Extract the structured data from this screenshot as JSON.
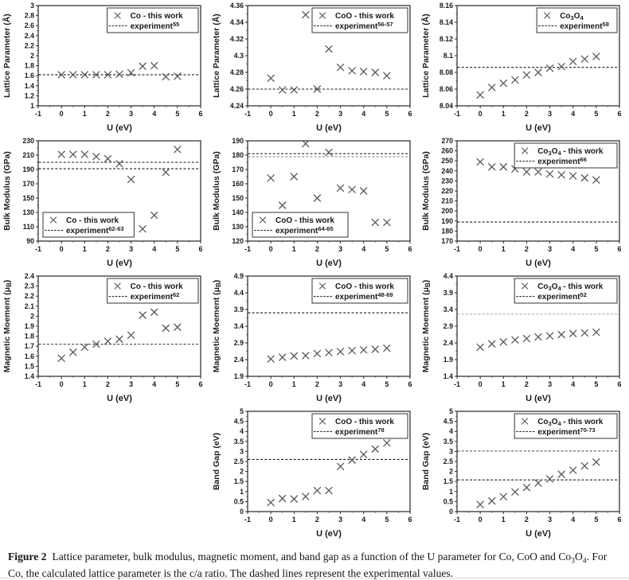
{
  "caption": {
    "label": "Figure 2",
    "text": "Lattice parameter, bulk modulus, magnetic moment, and band gap as a function of the U parameter for Co, CoO and Co_{3}O_{4}. For Co, the calculated lattice parameter is the c/a ratio. The dashed lines represent the experimental values."
  },
  "colors": {
    "marker": "#595959",
    "axis": "#262626",
    "tick_minor": "#777777",
    "experiment_dark": "#1a1a1a",
    "experiment_light": "#a6a6a6"
  },
  "chart_data": [
    {
      "id": "co-lattice-parameter",
      "type": "scatter",
      "marker": "x",
      "row": 1,
      "col": 1,
      "ylabel": "Lattice Parameter (Å)",
      "xlabel": "U (eV)",
      "xlim": [
        -1,
        6
      ],
      "ylim": [
        1,
        3
      ],
      "xticks": [
        -1,
        0,
        1,
        2,
        3,
        4,
        5,
        6
      ],
      "xtick_labels": [
        "-1",
        "0",
        "1",
        "2",
        "3",
        "4",
        "5",
        "6"
      ],
      "yticks": [
        1,
        1.2,
        1.4,
        1.6,
        1.8,
        2,
        2.2,
        2.4,
        2.6,
        2.8,
        3
      ],
      "ytick_labels": [
        "1",
        "1.2",
        "1.4",
        "1.6",
        "1.8",
        "2",
        "2.2",
        "2.4",
        "2.6",
        "2.8",
        "3"
      ],
      "x": [
        0,
        0.5,
        1,
        1.5,
        2,
        2.5,
        3,
        3.5,
        4,
        4.5,
        5
      ],
      "y": [
        1.62,
        1.62,
        1.62,
        1.62,
        1.62,
        1.63,
        1.66,
        1.79,
        1.8,
        1.58,
        1.59
      ],
      "experiment_lines": [
        {
          "y": 1.62,
          "color": "#1a1a1a"
        }
      ],
      "legend": {
        "position": "top-right",
        "entries": [
          {
            "symbol": "x-marker",
            "label": "Co - this work"
          },
          {
            "symbol": "dashed-line",
            "label": "experiment^{55}"
          }
        ]
      }
    },
    {
      "id": "coo-lattice-parameter",
      "type": "scatter",
      "marker": "x",
      "row": 1,
      "col": 2,
      "ylabel": "Lattice Parameter (Å)",
      "xlabel": "U (eV)",
      "xlim": [
        -1,
        6
      ],
      "ylim": [
        4.24,
        4.36
      ],
      "xticks": [
        -1,
        0,
        1,
        2,
        3,
        4,
        5,
        6
      ],
      "xtick_labels": [
        "-1",
        "0",
        "1",
        "2",
        "3",
        "4",
        "5",
        "6"
      ],
      "yticks": [
        4.24,
        4.26,
        4.28,
        4.3,
        4.32,
        4.34,
        4.36
      ],
      "ytick_labels": [
        "4.24",
        "4.26",
        "4.28",
        "4.3",
        "4.32",
        "4.34",
        "4.36"
      ],
      "x": [
        0,
        0.5,
        1,
        1.5,
        2,
        2.5,
        3,
        3.5,
        4,
        4.5,
        5
      ],
      "y": [
        4.273,
        4.259,
        4.259,
        4.349,
        4.26,
        4.308,
        4.286,
        4.282,
        4.281,
        4.28,
        4.276
      ],
      "experiment_lines": [
        {
          "y": 4.26,
          "color": "#1a1a1a"
        }
      ],
      "legend": {
        "position": "top-right",
        "entries": [
          {
            "symbol": "x-marker",
            "label": "CoO - this work"
          },
          {
            "symbol": "dashed-line",
            "label": "experiment^{56-57}"
          }
        ]
      }
    },
    {
      "id": "co3o4-lattice-parameter",
      "type": "scatter",
      "marker": "x",
      "row": 1,
      "col": 3,
      "ylabel": "Lattice Parameter (Å)",
      "xlabel": "U (eV)",
      "xlim": [
        -1,
        6
      ],
      "ylim": [
        8.04,
        8.16
      ],
      "xticks": [
        -1,
        0,
        1,
        2,
        3,
        4,
        5,
        6
      ],
      "xtick_labels": [
        "-1",
        "0",
        "1",
        "2",
        "3",
        "4",
        "5",
        "6"
      ],
      "yticks": [
        8.04,
        8.06,
        8.08,
        8.1,
        8.12,
        8.14,
        8.16
      ],
      "ytick_labels": [
        "8.04",
        "8.06",
        "8.08",
        "8.1",
        "8.12",
        "8.14",
        "8.16"
      ],
      "x": [
        0,
        0.5,
        1,
        1.5,
        2,
        2.5,
        3,
        3.5,
        4,
        4.5,
        5
      ],
      "y": [
        8.053,
        8.062,
        8.067,
        8.071,
        8.077,
        8.08,
        8.085,
        8.087,
        8.093,
        8.096,
        8.099
      ],
      "experiment_lines": [
        {
          "y": 8.086,
          "color": "#1a1a1a"
        }
      ],
      "legend": {
        "position": "top-right",
        "entries": [
          {
            "symbol": "x-marker",
            "label": "Co_{3}O_{4}"
          },
          {
            "symbol": "dashed-line",
            "label": "experiment^{58}"
          }
        ]
      }
    },
    {
      "id": "co-bulk-modulus",
      "type": "scatter",
      "marker": "x",
      "row": 2,
      "col": 1,
      "ylabel": "Bulk Modulus (GPa)",
      "xlabel": "U (eV)",
      "xlim": [
        -1,
        6
      ],
      "ylim": [
        90,
        230
      ],
      "xticks": [
        -1,
        0,
        1,
        2,
        3,
        4,
        5,
        6
      ],
      "xtick_labels": [
        "-1",
        "0",
        "1",
        "2",
        "3",
        "4",
        "5",
        "6"
      ],
      "yticks": [
        90,
        110,
        130,
        150,
        170,
        190,
        210,
        230
      ],
      "ytick_labels": [
        "90",
        "110",
        "130",
        "150",
        "170",
        "190",
        "210",
        "230"
      ],
      "x": [
        0,
        0.5,
        1,
        1.5,
        2,
        2.5,
        3,
        3.5,
        4,
        4.5,
        5
      ],
      "y": [
        211,
        211,
        211,
        208,
        205,
        198,
        176,
        107,
        126,
        186,
        218
      ],
      "experiment_lines": [
        {
          "y": 200,
          "color": "#1a1a1a"
        },
        {
          "y": 191,
          "color": "#1a1a1a"
        }
      ],
      "legend": {
        "position": "bottom-left",
        "entries": [
          {
            "symbol": "x-marker",
            "label": "Co - this work"
          },
          {
            "symbol": "dashed-line",
            "label": "experiment^{62-63}"
          }
        ]
      }
    },
    {
      "id": "coo-bulk-modulus",
      "type": "scatter",
      "marker": "x",
      "row": 2,
      "col": 2,
      "ylabel": "Bulk Modulus (GPa)",
      "xlabel": "U (eV)",
      "xlim": [
        -1,
        6
      ],
      "ylim": [
        120,
        190
      ],
      "xticks": [
        -1,
        0,
        1,
        2,
        3,
        4,
        5,
        6
      ],
      "xtick_labels": [
        "-1",
        "0",
        "1",
        "2",
        "3",
        "4",
        "5",
        "6"
      ],
      "yticks": [
        120,
        130,
        140,
        150,
        160,
        170,
        180,
        190
      ],
      "ytick_labels": [
        "120",
        "130",
        "140",
        "150",
        "160",
        "170",
        "180",
        "190"
      ],
      "x": [
        0,
        0.5,
        1,
        1.5,
        2,
        2.5,
        3,
        3.5,
        4,
        4.5,
        5
      ],
      "y": [
        164,
        145,
        165,
        188,
        150,
        182,
        157,
        156,
        155,
        133,
        133
      ],
      "experiment_lines": [
        {
          "y": 181,
          "color": "#262626"
        },
        {
          "y": 179,
          "color": "#8c8c8c"
        }
      ],
      "legend": {
        "position": "bottom-left",
        "entries": [
          {
            "symbol": "x-marker",
            "label": "CoO - this work"
          },
          {
            "symbol": "dashed-line",
            "label": "experiment^{64-65}"
          }
        ]
      }
    },
    {
      "id": "co3o4-bulk-modulus",
      "type": "scatter",
      "marker": "x",
      "row": 2,
      "col": 3,
      "ylabel": "Bulk Modulus (GPa)",
      "xlabel": "U (eV)",
      "xlim": [
        -1,
        6
      ],
      "ylim": [
        170,
        270
      ],
      "xticks": [
        -1,
        0,
        1,
        2,
        3,
        4,
        5,
        6
      ],
      "xtick_labels": [
        "-1",
        "0",
        "1",
        "2",
        "3",
        "4",
        "5",
        "6"
      ],
      "yticks": [
        170,
        180,
        190,
        200,
        210,
        220,
        230,
        240,
        250,
        260,
        270
      ],
      "ytick_labels": [
        "170",
        "180",
        "190",
        "200",
        "210",
        "220",
        "230",
        "240",
        "250",
        "260",
        "270"
      ],
      "x": [
        0,
        0.5,
        1,
        1.5,
        2,
        2.5,
        3,
        3.5,
        4,
        4.5,
        5
      ],
      "y": [
        249,
        244,
        244,
        242,
        239,
        239,
        237,
        236,
        235,
        233,
        231
      ],
      "experiment_lines": [
        {
          "y": 189,
          "color": "#1a1a1a"
        }
      ],
      "legend": {
        "position": "top-right",
        "entries": [
          {
            "symbol": "x-marker",
            "label": "Co_{3}O_{4} - this work"
          },
          {
            "symbol": "dashed-line",
            "label": "experiment^{66}"
          }
        ]
      }
    },
    {
      "id": "co-magnetic-moment",
      "type": "scatter",
      "marker": "x",
      "row": 3,
      "col": 1,
      "ylabel": "Magnetic Moement (μ_{B})",
      "xlabel": "U (eV)",
      "xlim": [
        -1,
        6
      ],
      "ylim": [
        1.4,
        2.4
      ],
      "xticks": [
        -1,
        0,
        1,
        2,
        3,
        4,
        5,
        6
      ],
      "xtick_labels": [
        "-1",
        "0",
        "1",
        "2",
        "3",
        "4",
        "5",
        "6"
      ],
      "yticks": [
        1.4,
        1.5,
        1.6,
        1.7,
        1.8,
        1.9,
        2,
        2.1,
        2.2,
        2.3,
        2.4
      ],
      "ytick_labels": [
        "1.4",
        "1.5",
        "1.6",
        "1.7",
        "1.8",
        "1.9",
        "2",
        "2.1",
        "2.2",
        "2.3",
        "2.4"
      ],
      "x": [
        0,
        0.5,
        1,
        1.5,
        2,
        2.5,
        3,
        3.5,
        4,
        4.5,
        5
      ],
      "y": [
        1.58,
        1.64,
        1.69,
        1.72,
        1.75,
        1.77,
        1.81,
        2.01,
        2.04,
        1.88,
        1.89
      ],
      "experiment_lines": [
        {
          "y": 1.72,
          "color": "#404040"
        }
      ],
      "legend": {
        "position": "top-right",
        "entries": [
          {
            "symbol": "x-marker",
            "label": "Co - this work"
          },
          {
            "symbol": "dashed-line",
            "label": "experiment^{62}"
          }
        ]
      }
    },
    {
      "id": "coo-magnetic-moment",
      "type": "scatter",
      "marker": "x",
      "row": 3,
      "col": 2,
      "ylabel": "Magnetic Moement (μ_{B})",
      "xlabel": "U (eV)",
      "xlim": [
        -1,
        6
      ],
      "ylim": [
        1.9,
        4.9
      ],
      "xticks": [
        -1,
        0,
        1,
        2,
        3,
        4,
        5,
        6
      ],
      "xtick_labels": [
        "-1",
        "0",
        "1",
        "2",
        "3",
        "4",
        "5",
        "6"
      ],
      "yticks": [
        1.9,
        2.4,
        2.9,
        3.4,
        3.9,
        4.4,
        4.9
      ],
      "ytick_labels": [
        "1.9",
        "2.4",
        "2.9",
        "3.4",
        "3.9",
        "4.4",
        "4.9"
      ],
      "x": [
        0,
        0.5,
        1,
        1.5,
        2,
        2.5,
        3,
        3.5,
        4,
        4.5,
        5
      ],
      "y": [
        2.42,
        2.47,
        2.51,
        2.52,
        2.58,
        2.61,
        2.64,
        2.67,
        2.69,
        2.71,
        2.74
      ],
      "experiment_lines": [
        {
          "y": 3.8,
          "color": "#1a1a1a"
        }
      ],
      "legend": {
        "position": "top-right",
        "entries": [
          {
            "symbol": "x-marker",
            "label": "CoO - this work"
          },
          {
            "symbol": "dashed-line",
            "label": "experiment^{48-69}"
          }
        ]
      }
    },
    {
      "id": "co3o4-magnetic-moment",
      "type": "scatter",
      "marker": "x",
      "row": 3,
      "col": 3,
      "ylabel": "Magnetic Moement (μ_{B})",
      "xlabel": "U (eV)",
      "xlim": [
        -1,
        6
      ],
      "ylim": [
        1.4,
        4.4
      ],
      "xticks": [
        -1,
        0,
        1,
        2,
        3,
        4,
        5,
        6
      ],
      "xtick_labels": [
        "-1",
        "0",
        "1",
        "2",
        "3",
        "4",
        "5",
        "6"
      ],
      "yticks": [
        1.4,
        1.9,
        2.4,
        2.9,
        3.4,
        3.9,
        4.4
      ],
      "ytick_labels": [
        "1.4",
        "1.9",
        "2.4",
        "2.9",
        "3.4",
        "3.9",
        "4.4"
      ],
      "x": [
        0,
        0.5,
        1,
        1.5,
        2,
        2.5,
        3,
        3.5,
        4,
        4.5,
        5
      ],
      "y": [
        2.27,
        2.37,
        2.43,
        2.49,
        2.53,
        2.58,
        2.61,
        2.65,
        2.68,
        2.7,
        2.72
      ],
      "experiment_lines": [
        {
          "y": 3.26,
          "color": "#a6a6a6"
        }
      ],
      "legend": {
        "position": "top-right",
        "entries": [
          {
            "symbol": "x-marker",
            "label": "Co_{3}O_{4} - this work"
          },
          {
            "symbol": "dashed-line",
            "label": "experiment^{52}"
          }
        ]
      }
    },
    {
      "id": "coo-band-gap",
      "type": "scatter",
      "marker": "x",
      "row": 4,
      "col": 2,
      "ylabel": "Band Gap (eV)",
      "xlabel": "U (eV)",
      "xlim": [
        -1,
        6
      ],
      "ylim": [
        0,
        5
      ],
      "xticks": [
        -1,
        0,
        1,
        2,
        3,
        4,
        5,
        6
      ],
      "xtick_labels": [
        "-1",
        "0",
        "1",
        "2",
        "3",
        "4",
        "5",
        "6"
      ],
      "yticks": [
        0,
        0.5,
        1,
        1.5,
        2,
        2.5,
        3,
        3.5,
        4,
        4.5,
        5
      ],
      "ytick_labels": [
        "0",
        "0.5",
        "1",
        "1.5",
        "2",
        "2.5",
        "3",
        "3.5",
        "4",
        "4.5",
        "5"
      ],
      "x": [
        0,
        0.5,
        1,
        1.5,
        2,
        2.5,
        3,
        3.5,
        4,
        4.5,
        5
      ],
      "y": [
        0.45,
        0.65,
        0.63,
        0.75,
        1.05,
        1.05,
        2.25,
        2.57,
        2.85,
        3.12,
        3.42
      ],
      "experiment_lines": [
        {
          "y": 2.6,
          "color": "#1a1a1a"
        }
      ],
      "legend": {
        "position": "top-right",
        "entries": [
          {
            "symbol": "x-marker",
            "label": "CoO - this work"
          },
          {
            "symbol": "dashed-line",
            "label": "experiment^{78}"
          }
        ]
      }
    },
    {
      "id": "co3o4-band-gap",
      "type": "scatter",
      "marker": "x",
      "row": 4,
      "col": 3,
      "ylabel": "Band Gap (eV)",
      "xlabel": "U (eV)",
      "xlim": [
        -1,
        6
      ],
      "ylim": [
        0,
        5
      ],
      "xticks": [
        -1,
        0,
        1,
        2,
        3,
        4,
        5,
        6
      ],
      "xtick_labels": [
        "-1",
        "0",
        "1",
        "2",
        "3",
        "4",
        "5",
        "6"
      ],
      "yticks": [
        0,
        0.5,
        1,
        1.5,
        2,
        2.5,
        3,
        3.5,
        4,
        4.5,
        5
      ],
      "ytick_labels": [
        "0",
        "0.5",
        "1",
        "1.5",
        "2",
        "2.5",
        "3",
        "3.5",
        "4",
        "4.5",
        "5"
      ],
      "x": [
        0,
        0.5,
        1,
        1.5,
        2,
        2.5,
        3,
        3.5,
        4,
        4.5,
        5
      ],
      "y": [
        0.35,
        0.53,
        0.74,
        0.98,
        1.2,
        1.42,
        1.63,
        1.86,
        2.06,
        2.28,
        2.47
      ],
      "experiment_lines": [
        {
          "y": 3.02,
          "color": "#595959"
        },
        {
          "y": 1.58,
          "color": "#1a1a1a"
        }
      ],
      "legend": {
        "position": "top-right",
        "entries": [
          {
            "symbol": "x-marker",
            "label": "Co_{3}O_{4} - this work"
          },
          {
            "symbol": "dashed-line",
            "label": "experiment^{70-73}"
          }
        ]
      }
    }
  ]
}
